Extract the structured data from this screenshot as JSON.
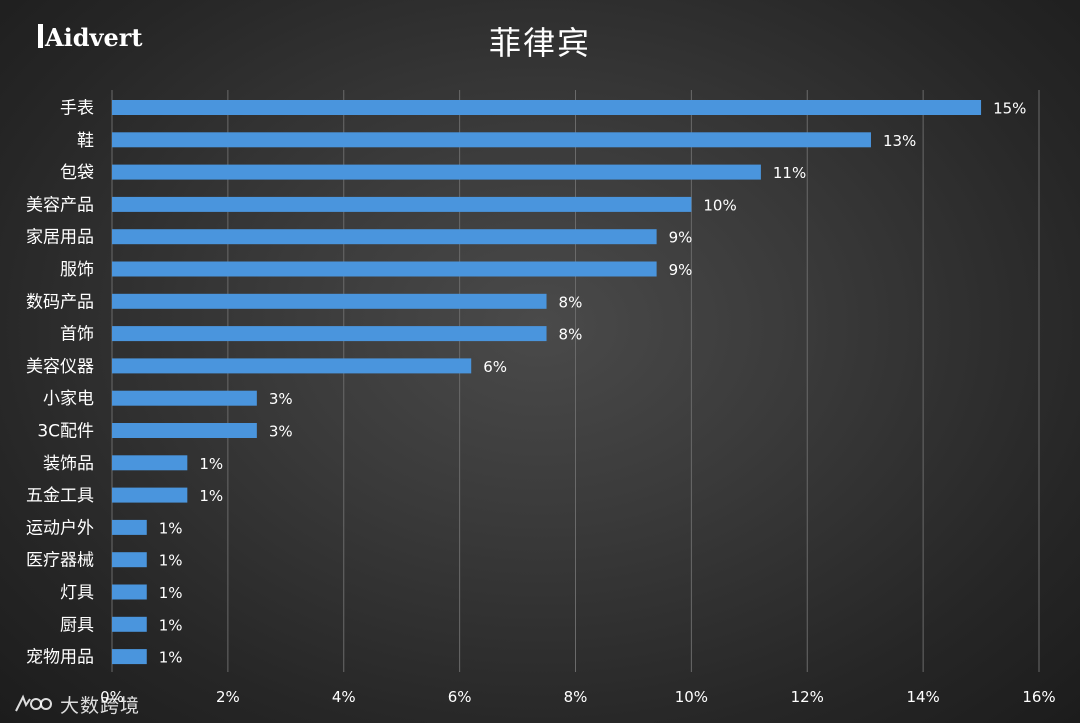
{
  "header": {
    "logo_text": "Aidvert",
    "title": "菲律宾"
  },
  "watermark": {
    "text": "大数跨境",
    "icon": "wave-logo-icon"
  },
  "colors": {
    "bar": "#4a95dd",
    "grid": "#6a6a6a",
    "text": "#ffffff"
  },
  "chart_data": {
    "type": "bar",
    "orientation": "horizontal",
    "title": "菲律宾",
    "categories": [
      "手表",
      "鞋",
      "包袋",
      "美容产品",
      "家居用品",
      "服饰",
      "数码产品",
      "首饰",
      "美容仪器",
      "小家电",
      "3C配件",
      "装饰品",
      "五金工具",
      "运动户外",
      "医疗器械",
      "灯具",
      "厨具",
      "宠物用品"
    ],
    "values": [
      15.0,
      13.1,
      11.2,
      10.0,
      9.4,
      9.4,
      7.5,
      7.5,
      6.2,
      2.5,
      2.5,
      1.3,
      1.3,
      0.6,
      0.6,
      0.6,
      0.6,
      0.6
    ],
    "data_labels": [
      "15%",
      "13%",
      "11%",
      "10%",
      "9%",
      "9%",
      "8%",
      "8%",
      "6%",
      "3%",
      "3%",
      "1%",
      "1%",
      "1%",
      "1%",
      "1%",
      "1%",
      "1%"
    ],
    "xlim": [
      0,
      16
    ],
    "xticks": [
      0,
      2,
      4,
      6,
      8,
      10,
      12,
      14,
      16
    ],
    "xtick_labels": [
      "0%",
      "2%",
      "4%",
      "6%",
      "8%",
      "10%",
      "12%",
      "14%",
      "16%"
    ],
    "grid": "vertical",
    "legend": "none"
  }
}
